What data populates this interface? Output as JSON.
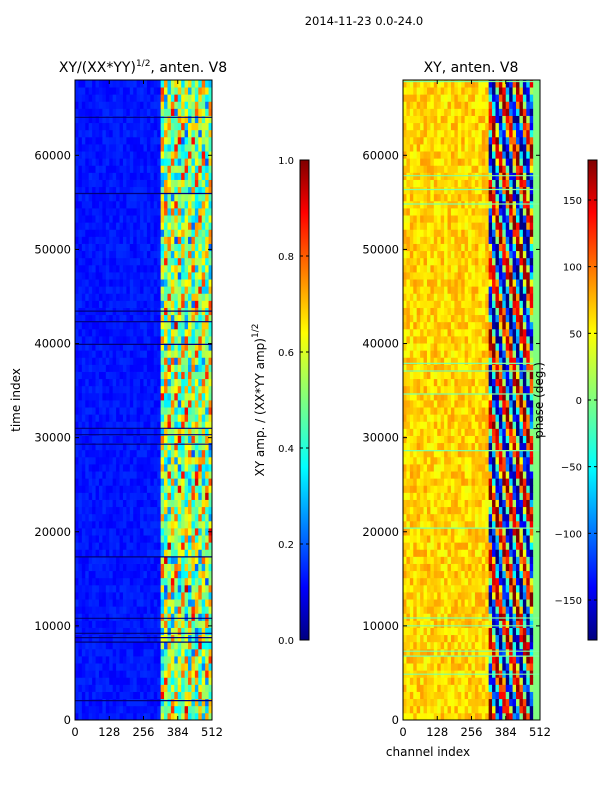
{
  "suptitle": "2014-11-23 0.0-24.0",
  "chart_data": [
    {
      "type": "heatmap",
      "title": "XY/(XX*YY)",
      "title_exp": "1/2",
      "title_suffix": ", anten. V8",
      "xlabel": "",
      "ylabel": "time index",
      "xlim": [
        0,
        512
      ],
      "ylim": [
        0,
        68000
      ],
      "xticks": [
        "0",
        "128",
        "256",
        "384",
        "512"
      ],
      "yticks": [
        "0",
        "10000",
        "20000",
        "30000",
        "40000",
        "50000",
        "60000"
      ],
      "colormap": "jet",
      "colorbar": {
        "label": "XY amp. / (XX*YY amp)",
        "label_exp": "1/2",
        "range": [
          0.0,
          1.0
        ],
        "ticks": [
          "0.0",
          "0.2",
          "0.4",
          "0.6",
          "0.8",
          "1.0"
        ]
      },
      "description_values": {
        "background": 0.12,
        "band_channels": [
          330,
          512
        ],
        "band_level": 0.55
      }
    },
    {
      "type": "heatmap",
      "title": "XY, anten. V8",
      "xlabel": "channel index",
      "ylabel": "",
      "xlim": [
        0,
        512
      ],
      "ylim": [
        0,
        68000
      ],
      "xticks": [
        "0",
        "128",
        "256",
        "384",
        "512"
      ],
      "yticks": [
        "0",
        "10000",
        "20000",
        "30000",
        "40000",
        "50000",
        "60000"
      ],
      "colormap": "jet",
      "colorbar": {
        "label": "phase (deg.)",
        "range": [
          -180,
          180
        ],
        "ticks": [
          "−150",
          "−100",
          "−50",
          "0",
          "50",
          "100",
          "150"
        ]
      },
      "description_values": {
        "background_deg": 60,
        "band_channels": [
          320,
          512
        ]
      }
    }
  ]
}
